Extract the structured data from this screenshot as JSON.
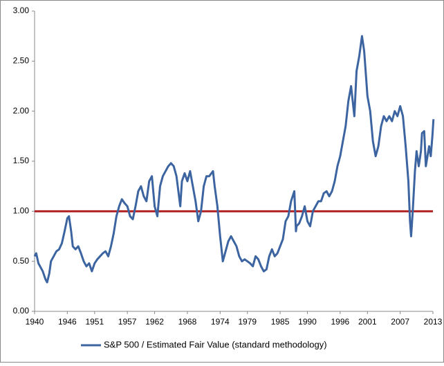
{
  "chart_data": {
    "type": "line",
    "x": [
      1940,
      1940.3,
      1940.7,
      1941,
      1941.5,
      1942,
      1942.3,
      1942.7,
      1943,
      1943.5,
      1944,
      1944.5,
      1945,
      1945.5,
      1946,
      1946.3,
      1946.7,
      1947,
      1947.5,
      1948,
      1948.5,
      1949,
      1949.5,
      1950,
      1950.5,
      1951,
      1951.5,
      1952,
      1952.5,
      1953,
      1953.5,
      1954,
      1954.5,
      1955,
      1955.5,
      1956,
      1956.5,
      1957,
      1957.5,
      1958,
      1958.5,
      1959,
      1959.5,
      1960,
      1960.5,
      1961,
      1961.5,
      1962,
      1962.5,
      1963,
      1963.5,
      1964,
      1964.5,
      1965,
      1965.5,
      1966,
      1966.7,
      1967,
      1967.5,
      1968,
      1968.5,
      1969,
      1969.5,
      1970,
      1970.5,
      1971,
      1971.5,
      1972,
      1972.7,
      1973,
      1973.5,
      1974,
      1974.5,
      1975,
      1975.5,
      1976,
      1976.5,
      1977,
      1977.5,
      1978,
      1978.5,
      1979,
      1979.5,
      1980,
      1980.5,
      1981,
      1981.5,
      1982,
      1982.5,
      1983,
      1983.5,
      1984,
      1984.5,
      1985,
      1985.5,
      1986,
      1986.5,
      1987,
      1987.6,
      1987.9,
      1988,
      1988.5,
      1989,
      1989.5,
      1990,
      1990.5,
      1991,
      1991.5,
      1992,
      1992.5,
      1993,
      1993.5,
      1994,
      1994.5,
      1995,
      1995.5,
      1996,
      1996.5,
      1997,
      1997.5,
      1998,
      1998.6,
      1999,
      1999.5,
      2000,
      2000.4,
      2000.8,
      2001,
      2001.5,
      2002,
      2002.5,
      2003,
      2003.5,
      2004,
      2004.5,
      2005,
      2005.5,
      2006,
      2006.5,
      2007,
      2007.5,
      2008,
      2008.5,
      2008.8,
      2009,
      2009.3,
      2009.7,
      2010,
      2010.4,
      2010.8,
      2011,
      2011.4,
      2011.7,
      2012,
      2012.3,
      2012.6,
      2012.9,
      2013.1
    ],
    "series": [
      {
        "name": "S&P 500 / Estimated Fair Value (standard methodology)",
        "color": "#3c64a0",
        "values": [
          0.55,
          0.58,
          0.48,
          0.45,
          0.4,
          0.32,
          0.29,
          0.38,
          0.5,
          0.55,
          0.6,
          0.62,
          0.68,
          0.8,
          0.93,
          0.95,
          0.8,
          0.65,
          0.62,
          0.65,
          0.58,
          0.5,
          0.45,
          0.48,
          0.4,
          0.48,
          0.52,
          0.55,
          0.58,
          0.6,
          0.55,
          0.65,
          0.78,
          0.95,
          1.05,
          1.12,
          1.08,
          1.05,
          0.95,
          0.92,
          1.05,
          1.2,
          1.25,
          1.15,
          1.1,
          1.3,
          1.35,
          1.05,
          0.95,
          1.25,
          1.35,
          1.4,
          1.45,
          1.48,
          1.45,
          1.35,
          1.05,
          1.3,
          1.38,
          1.3,
          1.4,
          1.25,
          1.1,
          0.9,
          1.0,
          1.25,
          1.35,
          1.35,
          1.4,
          1.25,
          1.05,
          0.75,
          0.5,
          0.6,
          0.7,
          0.75,
          0.7,
          0.65,
          0.55,
          0.5,
          0.52,
          0.5,
          0.48,
          0.45,
          0.55,
          0.52,
          0.45,
          0.4,
          0.42,
          0.55,
          0.62,
          0.55,
          0.58,
          0.65,
          0.72,
          0.9,
          0.95,
          1.1,
          1.2,
          0.8,
          0.85,
          0.88,
          0.95,
          1.05,
          0.9,
          0.85,
          1.0,
          1.05,
          1.1,
          1.1,
          1.18,
          1.2,
          1.15,
          1.2,
          1.3,
          1.45,
          1.55,
          1.7,
          1.85,
          2.1,
          2.25,
          1.95,
          2.4,
          2.55,
          2.75,
          2.6,
          2.3,
          2.15,
          2.0,
          1.7,
          1.55,
          1.65,
          1.85,
          1.95,
          1.9,
          1.95,
          1.9,
          2.0,
          1.95,
          2.05,
          1.95,
          1.65,
          1.3,
          0.9,
          0.75,
          1.0,
          1.4,
          1.6,
          1.45,
          1.6,
          1.78,
          1.8,
          1.45,
          1.55,
          1.65,
          1.55,
          1.75,
          1.92
        ]
      }
    ],
    "reference_line": {
      "value": 1,
      "color": "#b22222"
    },
    "xlim": [
      1940,
      2013
    ],
    "xticks": [
      1940,
      1946,
      1951,
      1957,
      1962,
      1968,
      1974,
      1979,
      1985,
      1990,
      1996,
      2001,
      2007,
      2013
    ],
    "ylim": [
      0,
      3
    ],
    "yticks": [
      {
        "value": 0,
        "label": "0.00"
      },
      {
        "value": 0.5,
        "label": "0.50"
      },
      {
        "value": 1,
        "label": "1.00"
      },
      {
        "value": 1.5,
        "label": "1.50"
      },
      {
        "value": 2,
        "label": "2.00"
      },
      {
        "value": 2.5,
        "label": "2.50"
      },
      {
        "value": 3,
        "label": "3.00"
      }
    ],
    "legend": "bottom"
  }
}
